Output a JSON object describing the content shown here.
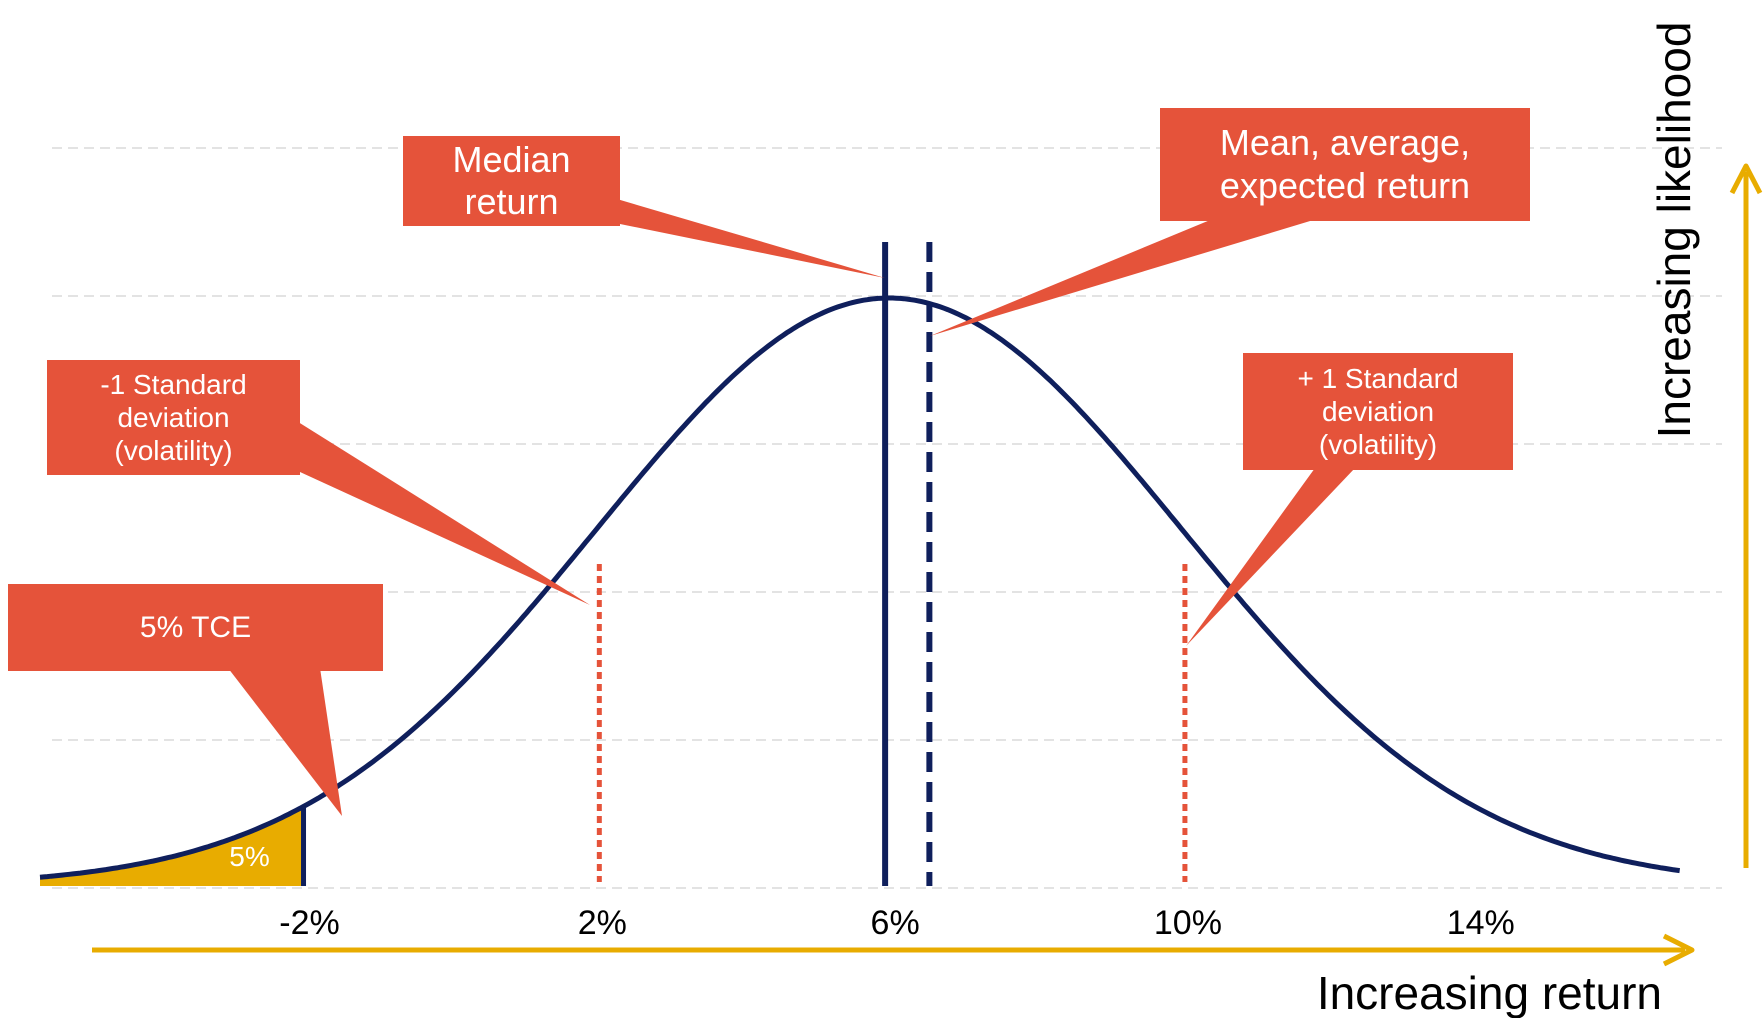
{
  "chart_data": {
    "type": "line",
    "title": "",
    "xlabel": "Increasing return",
    "ylabel": "Increasing likelihood",
    "x_ticks": [
      -2,
      2,
      6,
      10,
      14
    ],
    "tick_labels": [
      "-2%",
      "2%",
      "6%",
      "10%",
      "14%"
    ],
    "xlim": [
      -5.6,
      16.8
    ],
    "distribution": {
      "shape": "normal",
      "center_percent": 6,
      "std_dev_percent": 4
    },
    "markers": {
      "median_percent": 6,
      "mean_percent": 6.55,
      "minus_1_sd_percent": 2,
      "plus_1_sd_percent": 10,
      "tce_threshold_percent": -2,
      "tail_probability_percent": 5
    },
    "shaded_tail_label": "5%",
    "annotations": {
      "median": "Median\nreturn",
      "mean": "Mean, average,\nexpected return",
      "minus_sd": "-1 Standard\ndeviation\n(volatility)",
      "plus_sd": "+ 1 Standard\ndeviation\n(volatility)",
      "tce": "5% TCE"
    },
    "grid": true,
    "colors": {
      "curve": "#0f1f5c",
      "callout": "#e5533a",
      "tail_fill": "#e8ac00",
      "axis_arrow": "#e8ac00",
      "grid": "#e3e3e3"
    }
  }
}
